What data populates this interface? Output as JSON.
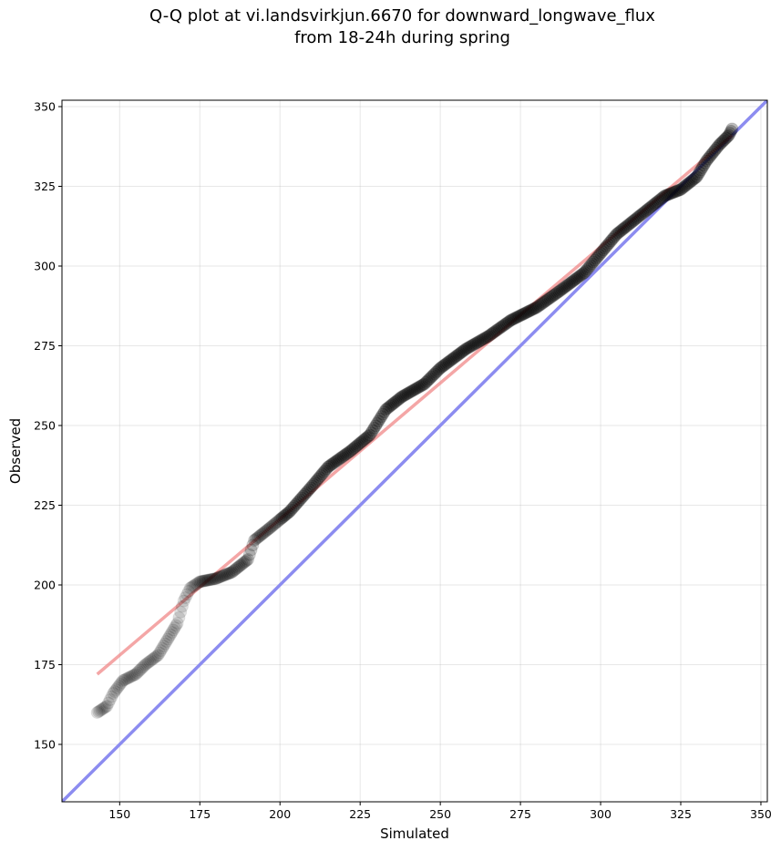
{
  "figure": {
    "title_line1": "Q-Q plot at vi.landsvirkjun.6670 for downward_longwave_flux",
    "title_line2": "from 18-24h during spring"
  },
  "chart_data": {
    "type": "scatter",
    "title": "Q-Q plot at vi.landsvirkjun.6670 for downward_longwave_flux from 18-24h during spring",
    "xlabel": "Simulated",
    "ylabel": "Observed",
    "xlim": [
      132,
      352
    ],
    "ylim": [
      132,
      352
    ],
    "xticks": [
      150,
      175,
      200,
      225,
      250,
      275,
      300,
      325,
      350
    ],
    "yticks": [
      150,
      175,
      200,
      225,
      250,
      275,
      300,
      325,
      350
    ],
    "grid": true,
    "quantile_curve": [
      [
        143,
        160
      ],
      [
        146,
        162
      ],
      [
        148,
        166
      ],
      [
        151,
        170
      ],
      [
        155,
        172
      ],
      [
        158,
        175
      ],
      [
        162,
        178
      ],
      [
        165,
        183
      ],
      [
        168,
        188
      ],
      [
        170,
        195
      ],
      [
        172,
        199
      ],
      [
        175,
        201
      ],
      [
        180,
        202
      ],
      [
        185,
        204
      ],
      [
        190,
        208
      ],
      [
        192,
        214
      ],
      [
        197,
        218
      ],
      [
        203,
        223
      ],
      [
        210,
        231
      ],
      [
        215,
        237
      ],
      [
        222,
        242
      ],
      [
        228,
        247
      ],
      [
        233,
        255
      ],
      [
        238,
        259
      ],
      [
        245,
        263
      ],
      [
        250,
        268
      ],
      [
        258,
        274
      ],
      [
        265,
        278
      ],
      [
        272,
        283
      ],
      [
        280,
        287
      ],
      [
        287,
        292
      ],
      [
        295,
        298
      ],
      [
        300,
        304
      ],
      [
        305,
        310
      ],
      [
        310,
        314
      ],
      [
        315,
        318
      ],
      [
        320,
        322
      ],
      [
        325,
        324
      ],
      [
        330,
        328
      ],
      [
        333,
        333
      ],
      [
        337,
        338
      ],
      [
        340,
        341
      ],
      [
        341,
        343
      ]
    ],
    "fit_line": {
      "x": [
        143,
        341
      ],
      "y": [
        172,
        341
      ],
      "color": "#f08080"
    },
    "identity_line": {
      "x": [
        132,
        352
      ],
      "y": [
        132,
        352
      ],
      "color": "#8c8cf0"
    },
    "colors": {
      "points": "#000000",
      "fit": "#f08080",
      "identity": "#8c8cf0"
    }
  }
}
